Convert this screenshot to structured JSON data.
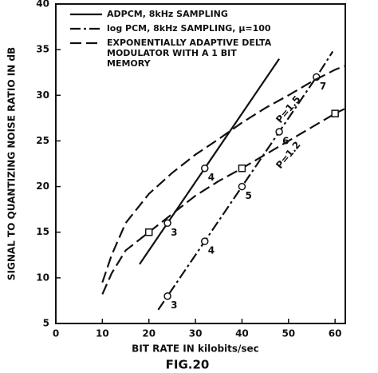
{
  "chart_data": {
    "type": "line",
    "title": "FIG.20",
    "xlabel": "BIT RATE IN  kilobits/sec",
    "ylabel": "SIGNAL TO QUANTIZING NOISE RATIO IN  dB",
    "xlim": [
      0,
      62.2
    ],
    "ylim": [
      5,
      40
    ],
    "xticks": [
      0,
      10,
      20,
      30,
      40,
      50,
      60
    ],
    "yticks": [
      5,
      10,
      15,
      20,
      25,
      30,
      35,
      40
    ],
    "color": "#111111",
    "legend": [
      {
        "text": [
          "ADPCM, 8kHz SAMPLING"
        ],
        "dash": "solid"
      },
      {
        "text": [
          "log PCM, 8kHz SAMPLING, μ=100"
        ],
        "dash": "dashdot"
      },
      {
        "text": [
          "EXPONENTIALLY ADAPTIVE DELTA",
          "MODULATOR WITH A 1 BIT",
          "MEMORY"
        ],
        "dash": "dashed"
      }
    ],
    "series": [
      {
        "dash": "solid",
        "marker": "circle",
        "x": [
          18,
          48
        ],
        "values": [
          11.5,
          34
        ],
        "points": [
          {
            "x": 24,
            "y": 16,
            "label": "3"
          },
          {
            "x": 32,
            "y": 22,
            "label": "4"
          }
        ]
      },
      {
        "dash": "dashdot",
        "marker": "circle",
        "x": [
          22,
          24,
          32,
          40,
          48,
          56,
          59.5
        ],
        "values": [
          6.5,
          8,
          14,
          20,
          26,
          32,
          34.8
        ],
        "points": [
          {
            "x": 24,
            "y": 8,
            "label": "3"
          },
          {
            "x": 32,
            "y": 14,
            "label": "4"
          },
          {
            "x": 40,
            "y": 20,
            "label": "5"
          },
          {
            "x": 48,
            "y": 26,
            "label": "6"
          },
          {
            "x": 56,
            "y": 32,
            "label": "7"
          }
        ]
      },
      {
        "name": "P=1.5",
        "dash": "dashed",
        "marker": "square",
        "x": [
          10,
          12,
          15,
          20,
          25,
          30,
          35,
          40,
          45,
          50,
          55,
          60,
          62
        ],
        "values": [
          9.5,
          12.5,
          16,
          19.2,
          21.5,
          23.5,
          25.2,
          27,
          28.6,
          30,
          31.5,
          32.8,
          33.2
        ],
        "points": []
      },
      {
        "name": "P=1.2",
        "dash": "dashed",
        "marker": "square",
        "x": [
          10,
          12,
          15,
          20,
          25,
          30,
          35,
          40,
          45,
          50,
          55,
          60,
          62
        ],
        "values": [
          8.2,
          10.5,
          13,
          15,
          17,
          19,
          20.6,
          22,
          23.5,
          25,
          26.5,
          28,
          28.5
        ],
        "points": [
          {
            "x": 20,
            "y": 15
          },
          {
            "x": 40,
            "y": 22
          },
          {
            "x": 60,
            "y": 28
          }
        ]
      }
    ]
  }
}
